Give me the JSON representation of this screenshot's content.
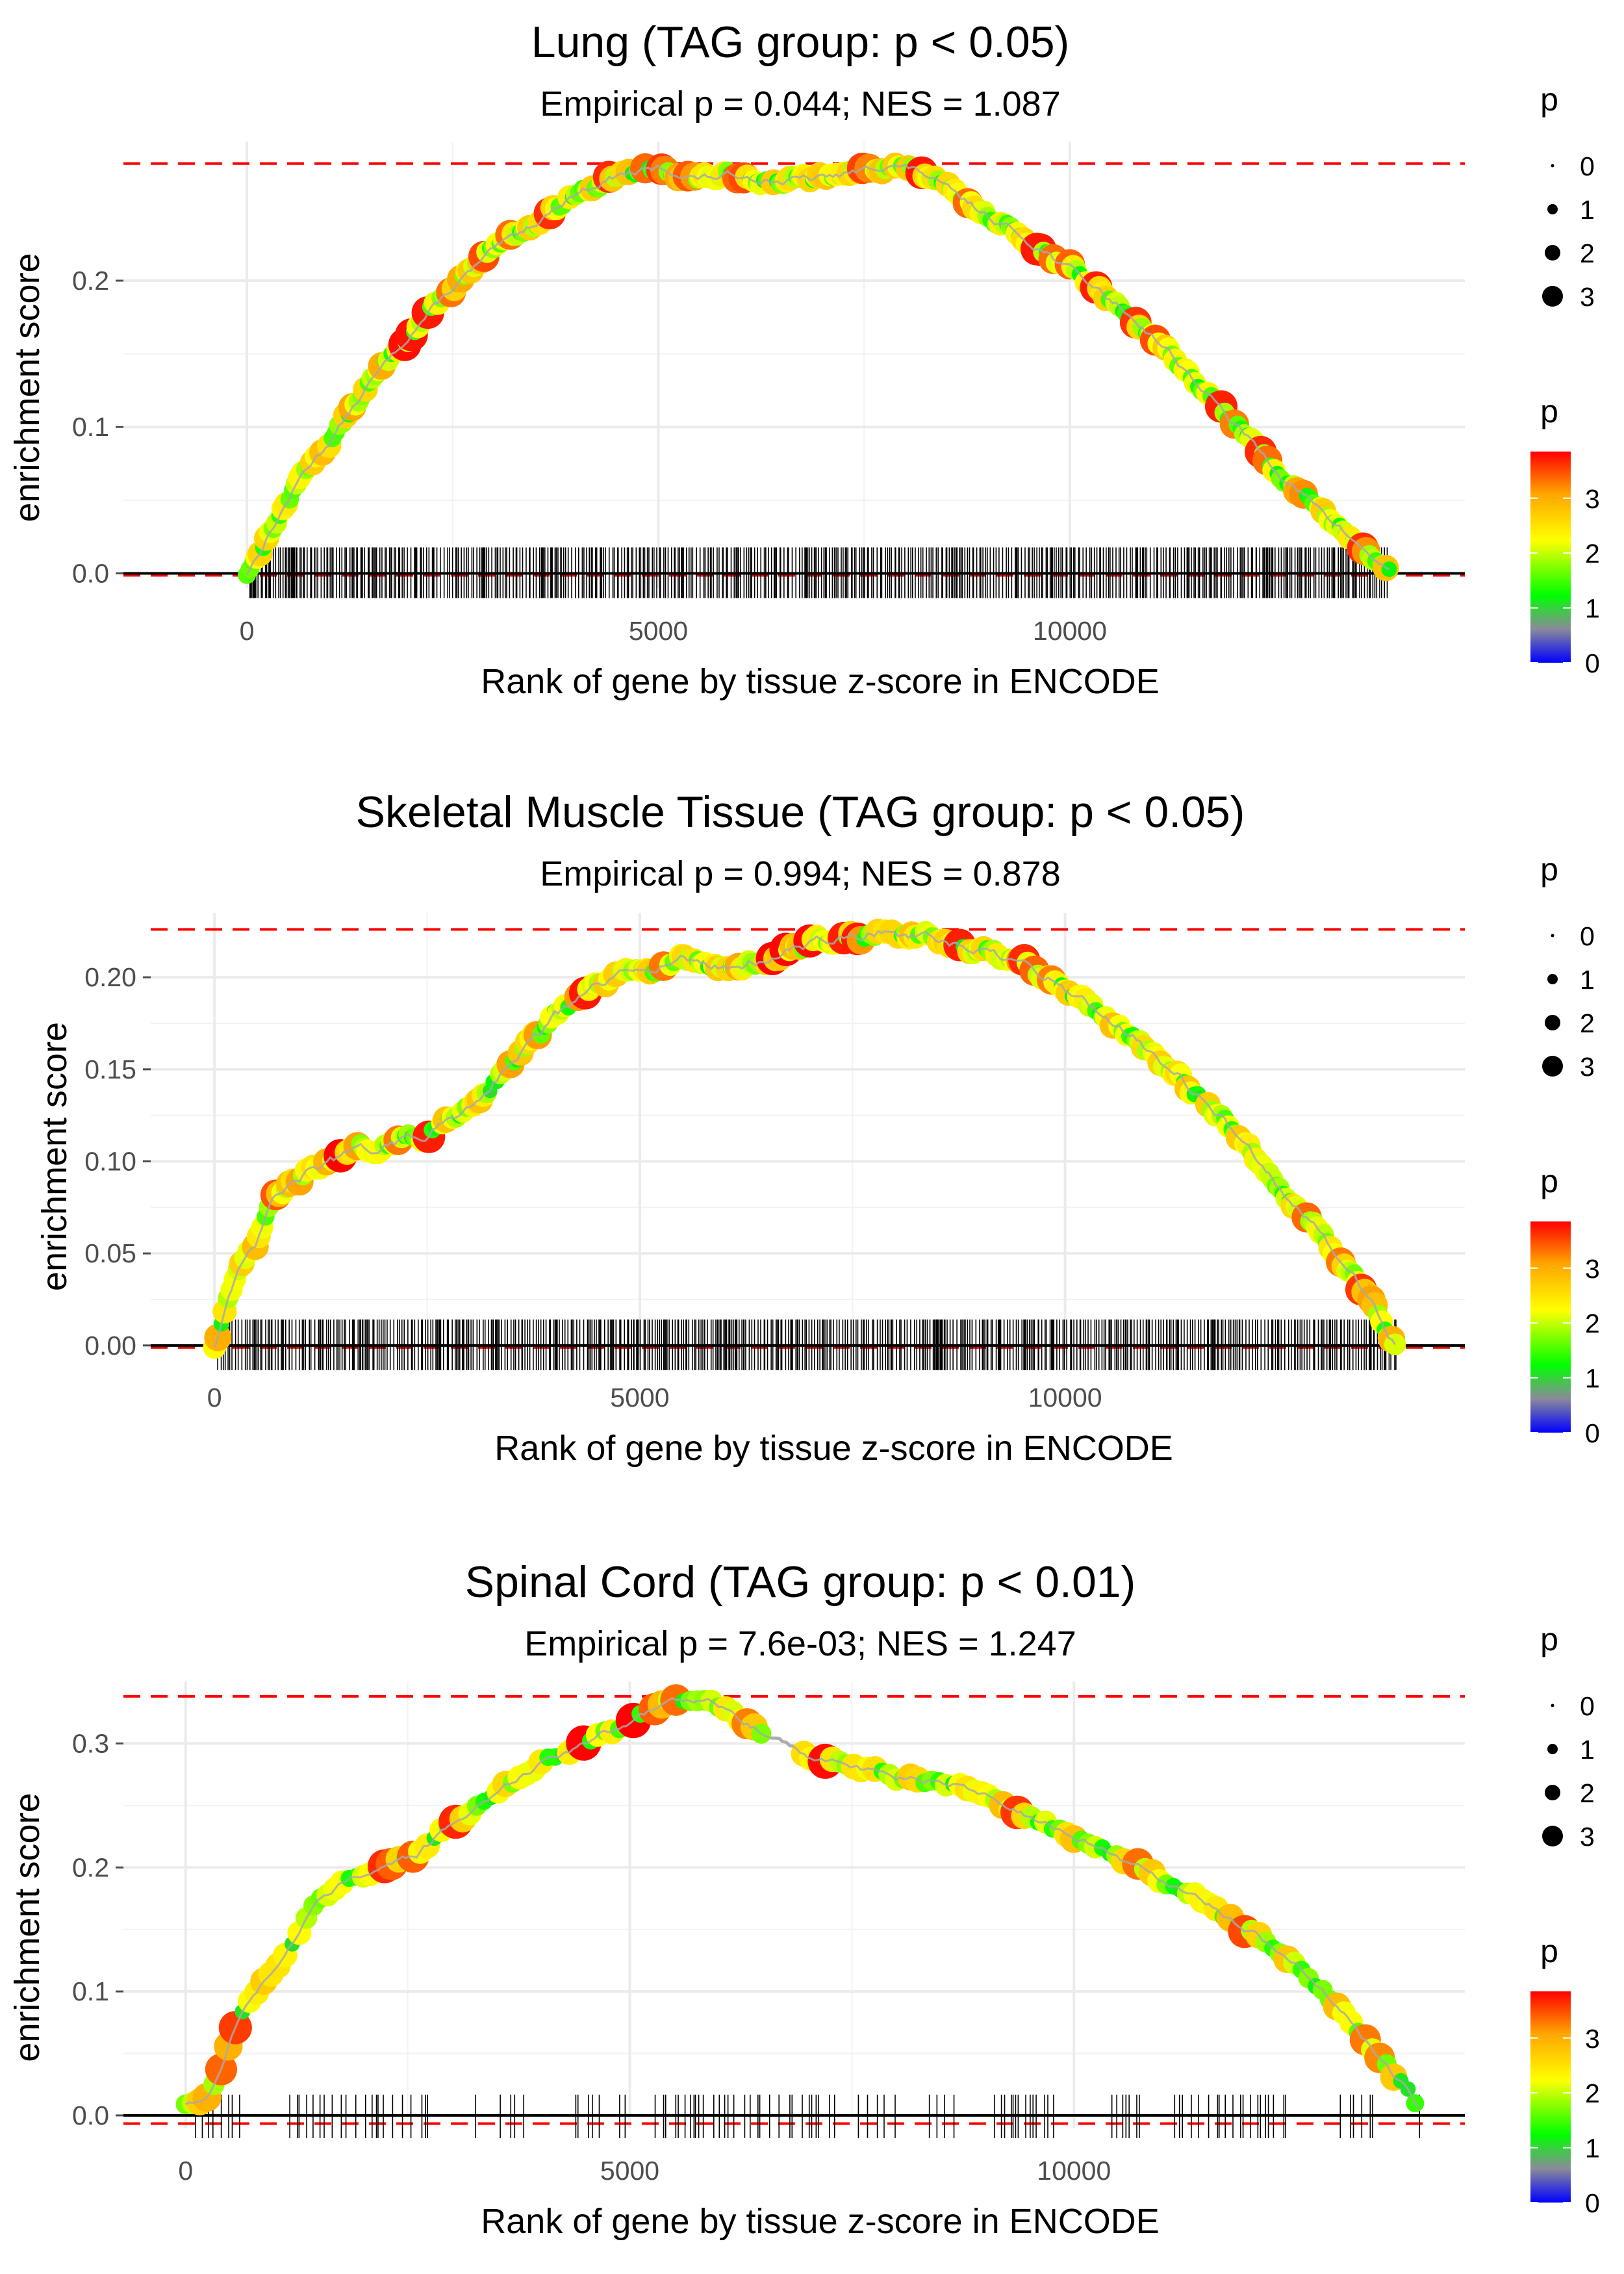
{
  "chart_data": [
    {
      "type": "line",
      "title": "Lung (TAG group: p < 0.05)",
      "subtitle": "Empirical p = 0.044; NES = 1.087",
      "xlabel": "Rank of gene by tissue z-score in ENCODE",
      "ylabel": "enrichment score",
      "xlim": [
        -1500,
        14800
      ],
      "ylim": [
        -0.01,
        0.295
      ],
      "x_ticks": [
        0,
        5000,
        10000
      ],
      "x_tick_labels": [
        "0",
        "5000",
        "10000"
      ],
      "y_ticks": [
        0.0,
        0.1,
        0.2
      ],
      "y_tick_labels": [
        "0.0",
        "0.1",
        "0.2"
      ],
      "max_es": 0.28,
      "min_es": 0.0,
      "gene_rank_max": 13900,
      "rug_density": "dense",
      "curve": {
        "x": [
          0,
          200,
          400,
          700,
          1000,
          1500,
          2000,
          2500,
          3000,
          3500,
          4000,
          4500,
          5000,
          5500,
          6000,
          6500,
          7000,
          7500,
          7800,
          8200,
          8700,
          9200,
          9700,
          10200,
          10700,
          11200,
          11700,
          12200,
          12700,
          13100,
          13500,
          13900
        ],
        "y": [
          0.0,
          0.02,
          0.04,
          0.07,
          0.09,
          0.13,
          0.165,
          0.195,
          0.22,
          0.24,
          0.26,
          0.272,
          0.276,
          0.27,
          0.272,
          0.268,
          0.27,
          0.275,
          0.28,
          0.274,
          0.255,
          0.238,
          0.22,
          0.2,
          0.178,
          0.152,
          0.12,
          0.09,
          0.06,
          0.04,
          0.02,
          0.0
        ]
      },
      "legend_size": {
        "title": "p",
        "labels": [
          "0",
          "1",
          "2",
          "3"
        ]
      },
      "legend_color": {
        "title": "p",
        "labels": [
          "0",
          "1",
          "2",
          "3"
        ],
        "colors": [
          "#0000ff",
          "#8a8a9a",
          "#00ff00",
          "#ffff00",
          "#ffa500",
          "#ff0000"
        ]
      }
    },
    {
      "type": "line",
      "title": "Skeletal Muscle Tissue (TAG group: p < 0.05)",
      "subtitle": "Empirical p = 0.994; NES = 0.878",
      "xlabel": "Rank of gene by tissue z-score in ENCODE",
      "ylabel": "enrichment score",
      "xlim": [
        -750,
        14700
      ],
      "ylim": [
        -0.005,
        0.235
      ],
      "x_ticks": [
        0,
        5000,
        10000
      ],
      "x_tick_labels": [
        "0",
        "5000",
        "10000"
      ],
      "y_ticks": [
        0.0,
        0.05,
        0.1,
        0.15,
        0.2
      ],
      "y_tick_labels": [
        "0.00",
        "0.05",
        "0.10",
        "0.15",
        "0.20"
      ],
      "max_es": 0.226,
      "min_es": 0.0,
      "gene_rank_max": 13900,
      "rug_density": "dense",
      "curve": {
        "x": [
          0,
          150,
          300,
          500,
          700,
          1000,
          1300,
          1700,
          2000,
          2500,
          3000,
          3500,
          4000,
          4500,
          5000,
          5500,
          6000,
          6500,
          7000,
          7500,
          7900,
          8300,
          8800,
          9300,
          9800,
          10300,
          10800,
          11300,
          11800,
          12300,
          12800,
          13200,
          13600,
          13900
        ],
        "y": [
          0.0,
          0.025,
          0.04,
          0.055,
          0.08,
          0.09,
          0.1,
          0.105,
          0.108,
          0.115,
          0.13,
          0.155,
          0.178,
          0.195,
          0.205,
          0.21,
          0.205,
          0.21,
          0.218,
          0.222,
          0.225,
          0.222,
          0.215,
          0.21,
          0.2,
          0.185,
          0.168,
          0.148,
          0.125,
          0.1,
          0.07,
          0.05,
          0.025,
          0.0
        ]
      },
      "legend_size": {
        "title": "p",
        "labels": [
          "0",
          "1",
          "2",
          "3"
        ]
      },
      "legend_color": {
        "title": "p",
        "labels": [
          "0",
          "1",
          "2",
          "3"
        ],
        "colors": [
          "#0000ff",
          "#8a8a9a",
          "#00ff00",
          "#ffff00",
          "#ffa500",
          "#ff0000"
        ]
      }
    },
    {
      "type": "line",
      "title": "Spinal Cord (TAG group: p < 0.01)",
      "subtitle": "Empirical p = 7.6e-03; NES = 1.247",
      "xlabel": "Rank of gene by tissue z-score in ENCODE",
      "ylabel": "enrichment score",
      "xlim": [
        -700,
        14400
      ],
      "ylim": [
        -0.01,
        0.35
      ],
      "x_ticks": [
        0,
        5000,
        10000
      ],
      "x_tick_labels": [
        "0",
        "5000",
        "10000"
      ],
      "y_ticks": [
        0.0,
        0.1,
        0.2,
        0.3
      ],
      "y_tick_labels": [
        "0.0",
        "0.1",
        "0.2",
        "0.3"
      ],
      "max_es": 0.338,
      "min_es": -0.005,
      "gene_rank_max": 13900,
      "rug_density": "sparse",
      "curve": {
        "x": [
          0,
          250,
          400,
          600,
          900,
          1200,
          1500,
          1800,
          2200,
          2600,
          3000,
          3500,
          4000,
          4500,
          5000,
          5500,
          5900,
          6300,
          6600,
          7000,
          7500,
          8000,
          8500,
          9000,
          9500,
          10000,
          10500,
          11000,
          11500,
          12000,
          12500,
          13000,
          13400,
          13700,
          13900
        ],
        "y": [
          0.01,
          0.012,
          0.04,
          0.08,
          0.11,
          0.14,
          0.175,
          0.19,
          0.2,
          0.21,
          0.235,
          0.26,
          0.285,
          0.3,
          0.318,
          0.335,
          0.337,
          0.318,
          0.305,
          0.29,
          0.282,
          0.272,
          0.27,
          0.258,
          0.24,
          0.225,
          0.208,
          0.19,
          0.17,
          0.148,
          0.12,
          0.085,
          0.05,
          0.025,
          0.005
        ]
      },
      "legend_size": {
        "title": "p",
        "labels": [
          "0",
          "1",
          "2",
          "3"
        ]
      },
      "legend_color": {
        "title": "p",
        "labels": [
          "0",
          "1",
          "2",
          "3"
        ],
        "colors": [
          "#0000ff",
          "#8a8a9a",
          "#00ff00",
          "#ffff00",
          "#ffa500",
          "#ff0000"
        ]
      }
    }
  ]
}
